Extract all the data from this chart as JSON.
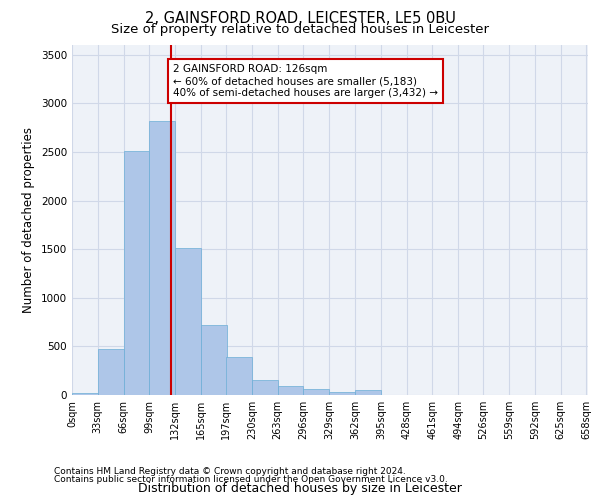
{
  "title": "2, GAINSFORD ROAD, LEICESTER, LE5 0BU",
  "subtitle": "Size of property relative to detached houses in Leicester",
  "xlabel": "Distribution of detached houses by size in Leicester",
  "ylabel": "Number of detached properties",
  "bar_values": [
    20,
    470,
    2510,
    2820,
    1510,
    720,
    390,
    155,
    95,
    60,
    30,
    50,
    0,
    0,
    0,
    0,
    0,
    0,
    0,
    0
  ],
  "bar_left_edges": [
    0,
    33,
    66,
    99,
    132,
    165,
    197,
    230,
    263,
    296,
    329,
    362,
    395,
    428,
    461,
    494,
    526,
    559,
    592,
    625
  ],
  "bin_width": 33,
  "tick_labels": [
    "0sqm",
    "33sqm",
    "66sqm",
    "99sqm",
    "132sqm",
    "165sqm",
    "197sqm",
    "230sqm",
    "263sqm",
    "296sqm",
    "329sqm",
    "362sqm",
    "395sqm",
    "428sqm",
    "461sqm",
    "494sqm",
    "526sqm",
    "559sqm",
    "592sqm",
    "625sqm",
    "658sqm"
  ],
  "bar_color": "#aec6e8",
  "bar_edgecolor": "#6baed6",
  "property_line_x": 126,
  "annotation_text": "2 GAINSFORD ROAD: 126sqm\n← 60% of detached houses are smaller (5,183)\n40% of semi-detached houses are larger (3,432) →",
  "annotation_box_color": "#cc0000",
  "ylim": [
    0,
    3600
  ],
  "yticks": [
    0,
    500,
    1000,
    1500,
    2000,
    2500,
    3000,
    3500
  ],
  "grid_color": "#d0d8e8",
  "background_color": "#eef2f8",
  "footnote1": "Contains HM Land Registry data © Crown copyright and database right 2024.",
  "footnote2": "Contains public sector information licensed under the Open Government Licence v3.0.",
  "line_color": "#cc0000",
  "title_fontsize": 10.5,
  "subtitle_fontsize": 9.5,
  "annot_fontsize": 7.5,
  "tick_fontsize": 7,
  "ylabel_fontsize": 8.5,
  "xlabel_fontsize": 9,
  "footnote_fontsize": 6.5
}
